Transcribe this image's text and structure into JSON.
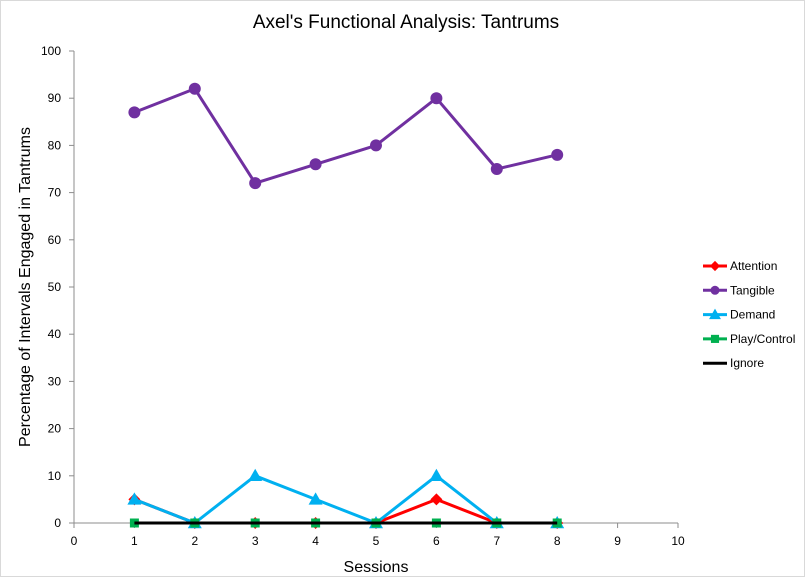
{
  "chart_data": {
    "type": "line",
    "title": "Axel's Functional Analysis: Tantrums",
    "xlabel": "Sessions",
    "ylabel": "Percentage of Intervals Engaged in Tantrums",
    "xlim": [
      0,
      10
    ],
    "ylim": [
      0,
      100
    ],
    "xticks": [
      0,
      1,
      2,
      3,
      4,
      5,
      6,
      7,
      8,
      9,
      10
    ],
    "yticks": [
      0,
      10,
      20,
      30,
      40,
      50,
      60,
      70,
      80,
      90,
      100
    ],
    "grid": false,
    "legend_position": "right",
    "x": [
      1,
      2,
      3,
      4,
      5,
      6,
      7,
      8
    ],
    "series": [
      {
        "name": "Attention",
        "values": [
          5,
          0,
          0,
          0,
          0,
          5,
          0,
          0
        ],
        "color": "#ff0000",
        "marker": "diamond"
      },
      {
        "name": "Tangible",
        "values": [
          87,
          92,
          72,
          76,
          80,
          90,
          75,
          78
        ],
        "color": "#7030a0",
        "marker": "circle"
      },
      {
        "name": "Demand",
        "values": [
          5,
          0,
          10,
          5,
          0,
          10,
          0,
          0
        ],
        "color": "#00b0f0",
        "marker": "triangle"
      },
      {
        "name": "Play/Control",
        "values": [
          0,
          0,
          0,
          0,
          0,
          0,
          0,
          0
        ],
        "color": "#00b050",
        "marker": "square"
      },
      {
        "name": "Ignore",
        "values": [
          0,
          0,
          0,
          0,
          0,
          0,
          0,
          0
        ],
        "color": "#000000",
        "marker": "none"
      }
    ]
  }
}
